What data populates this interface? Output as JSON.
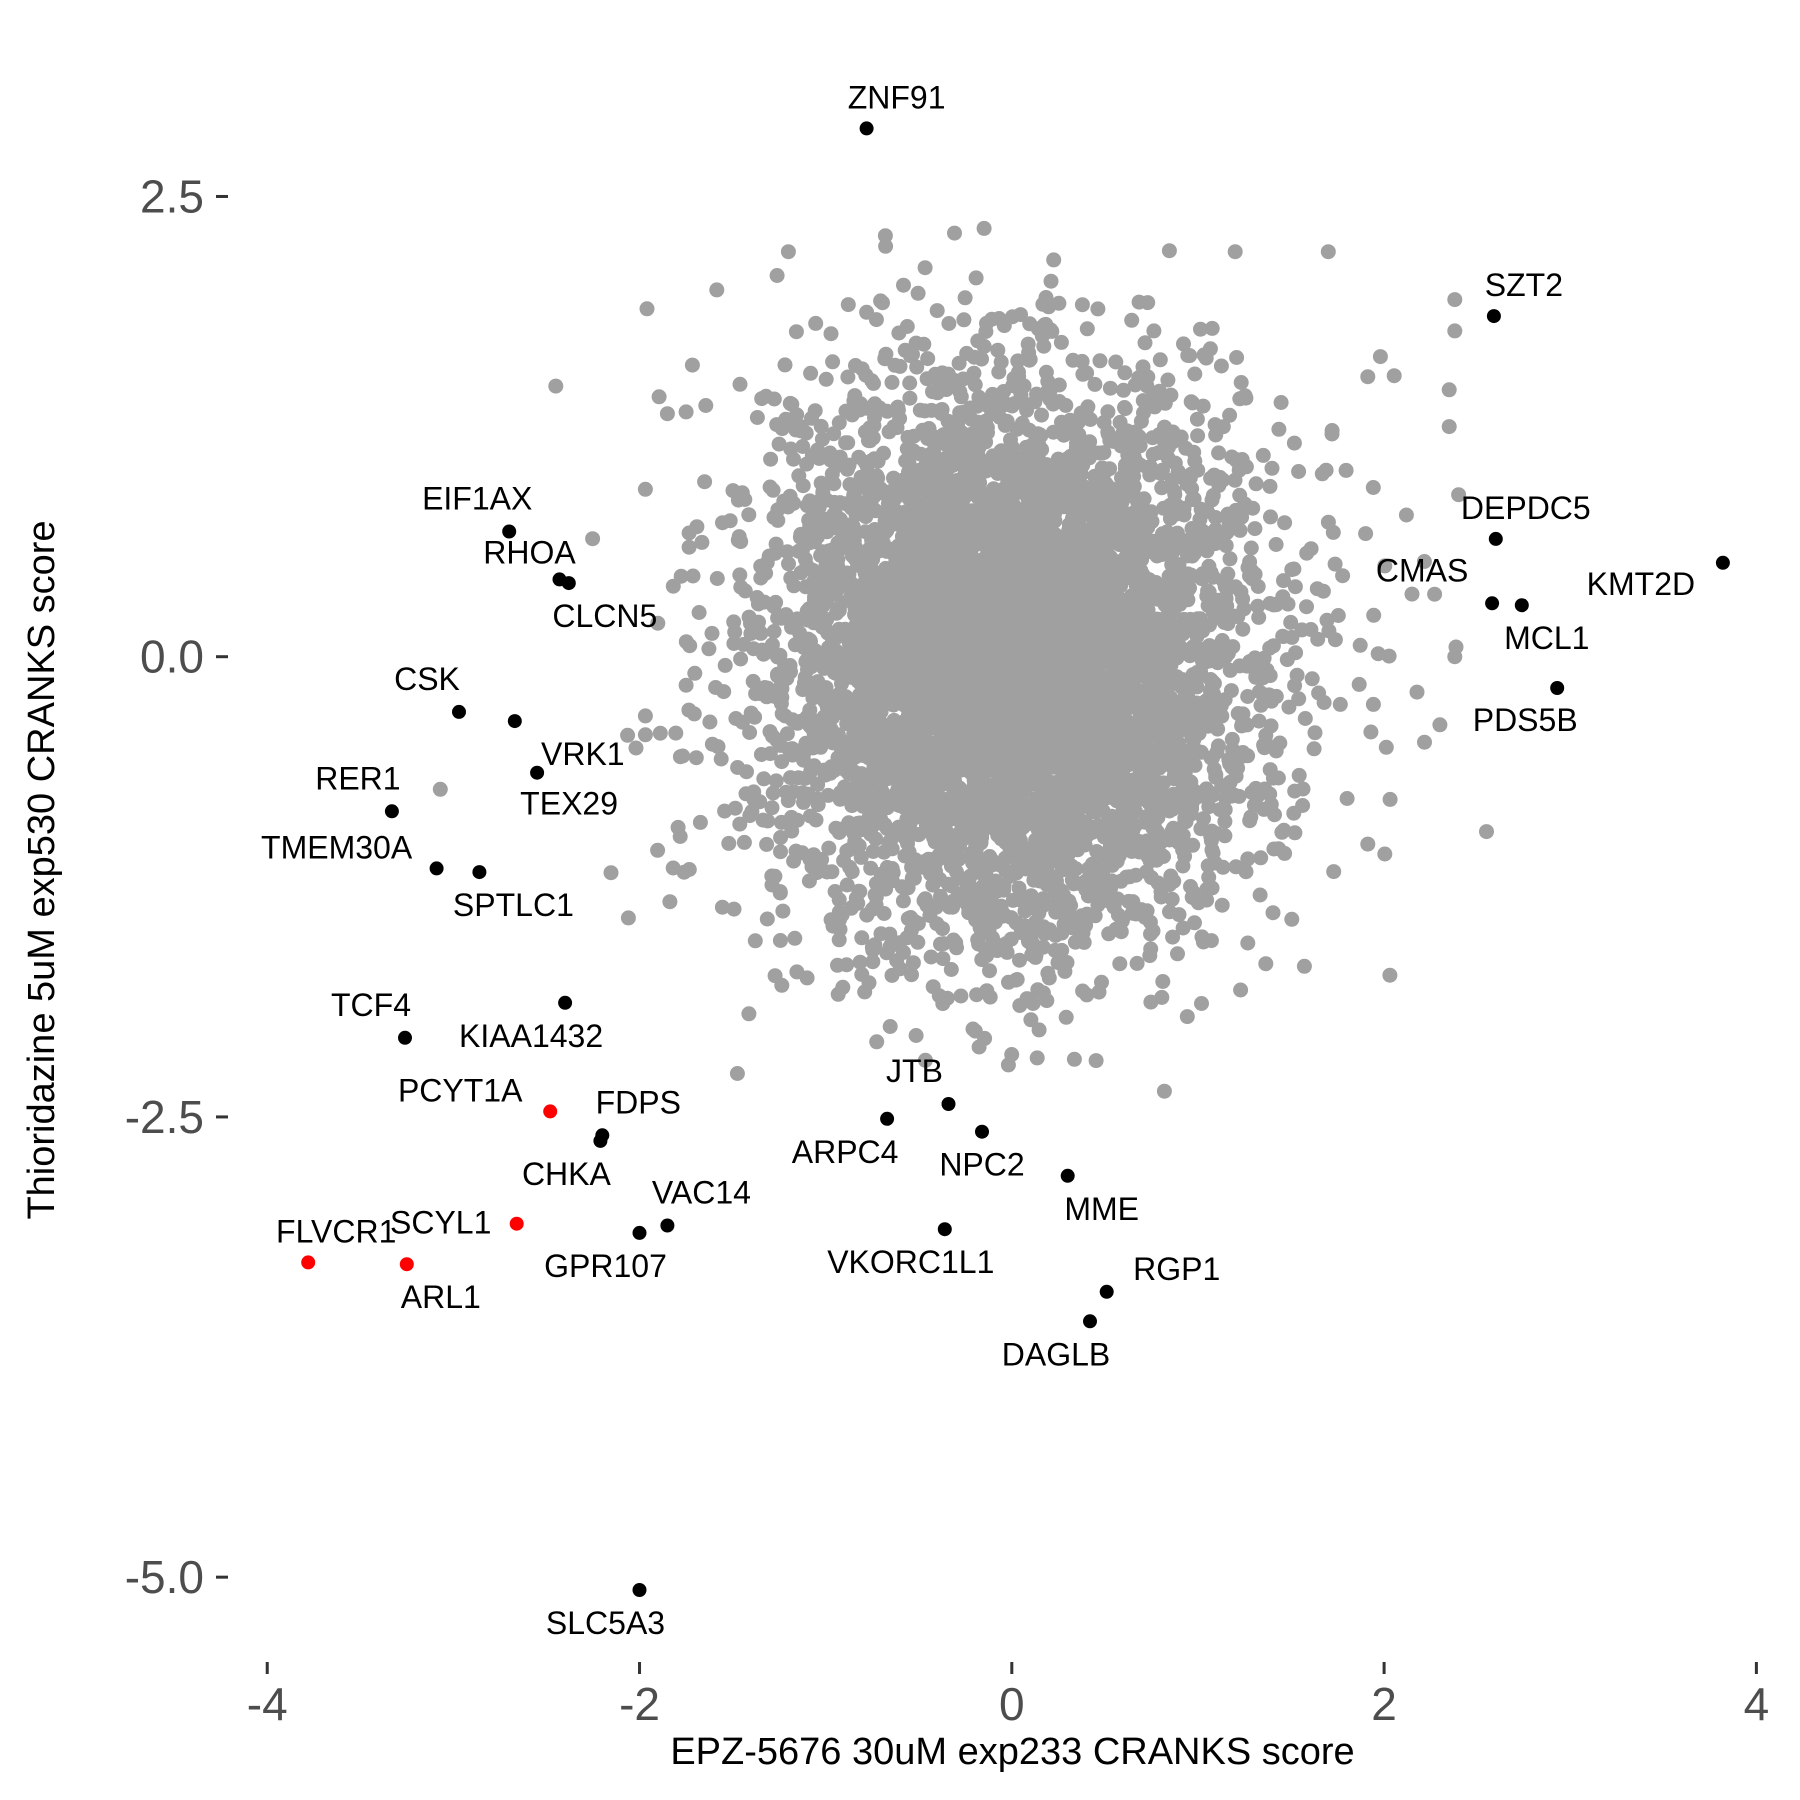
{
  "chart_data": {
    "type": "scatter",
    "title": "",
    "xlabel": "EPZ-5676 30uM exp233 CRANKS score",
    "ylabel": "Thioridazine 5uM exp530 CRANKS score",
    "xlim": [
      -4.2,
      4.1
    ],
    "ylim": [
      -5.45,
      3.35
    ],
    "xticks": [
      -4,
      -2,
      0,
      2,
      4
    ],
    "xtick_labels": [
      "-4",
      "-2",
      "0",
      "2",
      "4"
    ],
    "yticks": [
      2.5,
      0.0,
      -2.5,
      -5.0
    ],
    "ytick_labels": [
      "2.5",
      "0.0",
      "-2.5",
      "-5.0"
    ],
    "grid": false,
    "background_points": {
      "color": "#a0a0a0",
      "description_count": 6000,
      "distribution": "bivariate normal, center (0.0, 0.0), sd x 0.65, sd y 0.75",
      "extra_points": [
        [
          -1.96,
          1.89
        ],
        [
          -2.45,
          1.47
        ],
        [
          -1.85,
          1.32
        ],
        [
          -1.2,
          2.2
        ],
        [
          1.2,
          2.2
        ],
        [
          1.7,
          2.2
        ],
        [
          2.38,
          1.94
        ],
        [
          2.38,
          1.77
        ],
        [
          2.35,
          1.45
        ],
        [
          2.35,
          1.25
        ],
        [
          2.4,
          0.88
        ],
        [
          2.38,
          0.0
        ],
        [
          2.3,
          -0.37
        ],
        [
          2.55,
          -0.95
        ],
        [
          0.82,
          -2.36
        ],
        [
          -3.07,
          -0.72
        ],
        [
          -1.46,
          1.48
        ],
        [
          -1.75,
          1.33
        ],
        [
          1.98,
          1.63
        ],
        [
          -1.68,
          0.24
        ],
        [
          2.12,
          0.77
        ],
        [
          2.15,
          0.34
        ]
      ]
    },
    "series": [
      {
        "name": "",
        "color": "#000000",
        "points": [
          {
            "label": "ZNF91",
            "x": -0.78,
            "y": 2.87
          },
          {
            "label": "SZT2",
            "x": 2.59,
            "y": 1.85
          },
          {
            "label": "DEPDC5",
            "x": 2.6,
            "y": 0.64
          },
          {
            "label": "KMT2D",
            "x": 3.82,
            "y": 0.51
          },
          {
            "label": "CMAS",
            "x": 2.58,
            "y": 0.29
          },
          {
            "label": "MCL1",
            "x": 2.74,
            "y": 0.28
          },
          {
            "label": "PDS5B",
            "x": 2.93,
            "y": -0.17
          },
          {
            "label": "EIF1AX",
            "x": -2.7,
            "y": 0.68
          },
          {
            "label": "RHOA",
            "x": -2.43,
            "y": 0.42
          },
          {
            "label": "CLCN5",
            "x": -2.38,
            "y": 0.4
          },
          {
            "label": "CSK",
            "x": -2.97,
            "y": -0.3
          },
          {
            "label": "VRK1",
            "x": -2.67,
            "y": -0.35
          },
          {
            "label": "TEX29",
            "x": -2.55,
            "y": -0.63
          },
          {
            "label": "RER1",
            "x": -3.33,
            "y": -0.84
          },
          {
            "label": "TMEM30A",
            "x": -3.09,
            "y": -1.15
          },
          {
            "label": "SPTLC1",
            "x": -2.86,
            "y": -1.17
          },
          {
            "label": "TCF4",
            "x": -3.26,
            "y": -2.07
          },
          {
            "label": "KIAA1432",
            "x": -2.4,
            "y": -1.88
          },
          {
            "label": "FDPS",
            "x": -2.2,
            "y": -2.6
          },
          {
            "label": "CHKA",
            "x": -2.21,
            "y": -2.63
          },
          {
            "label": "VAC14",
            "x": -1.85,
            "y": -3.09
          },
          {
            "label": "GPR107",
            "x": -2.0,
            "y": -3.13
          },
          {
            "label": "JTB",
            "x": -0.34,
            "y": -2.43
          },
          {
            "label": "ARPC4",
            "x": -0.67,
            "y": -2.51
          },
          {
            "label": "NPC2",
            "x": -0.16,
            "y": -2.58
          },
          {
            "label": "MME",
            "x": 0.3,
            "y": -2.82
          },
          {
            "label": "VKORC1L1",
            "x": -0.36,
            "y": -3.11
          },
          {
            "label": "RGP1",
            "x": 0.51,
            "y": -3.45
          },
          {
            "label": "DAGLB",
            "x": 0.42,
            "y": -3.61
          },
          {
            "label": "SLC5A3",
            "x": -2.0,
            "y": -5.07
          }
        ]
      },
      {
        "name": "",
        "color": "#ff0000",
        "points": [
          {
            "label": "PCYT1A",
            "x": -2.48,
            "y": -2.47
          },
          {
            "label": "SCYL1",
            "x": -2.66,
            "y": -3.08
          },
          {
            "label": "FLVCR1",
            "x": -3.78,
            "y": -3.29
          },
          {
            "label": "ARL1",
            "x": -3.25,
            "y": -3.3
          }
        ]
      }
    ]
  }
}
